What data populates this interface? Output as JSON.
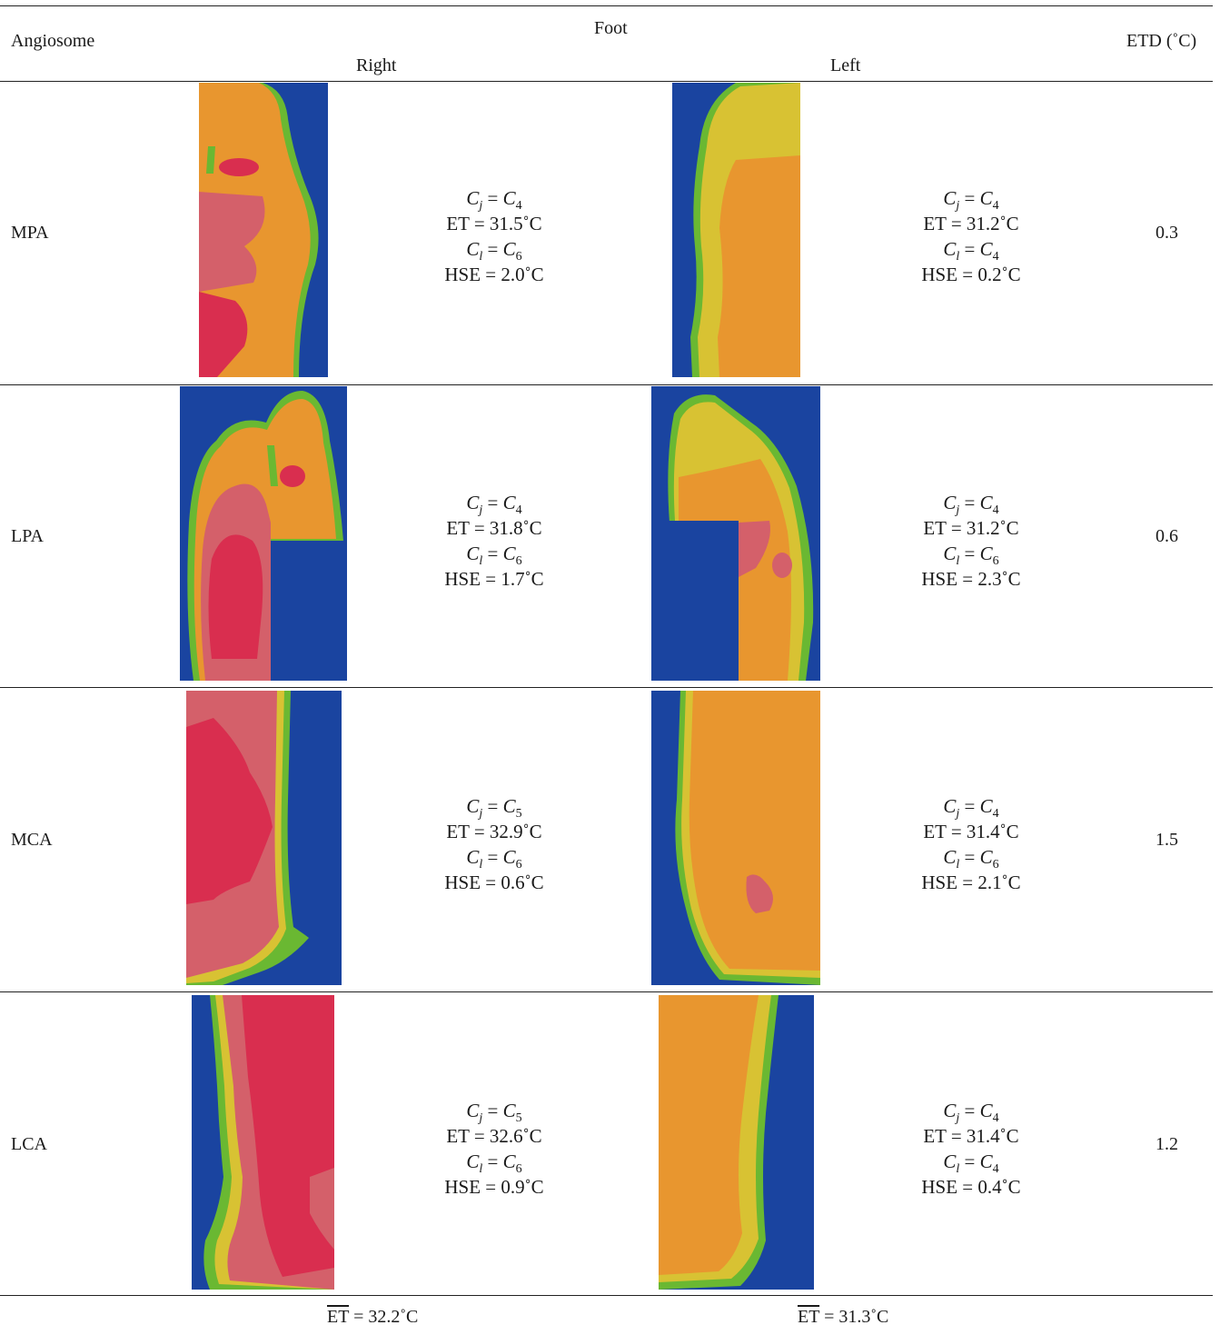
{
  "header": {
    "col_angiosome": "Angiosome",
    "col_foot": "Foot",
    "col_right": "Right",
    "col_left": "Left",
    "col_etd": "ETD (˚C)"
  },
  "colors": {
    "background": "#1a44a0",
    "cold_green": "#6ab832",
    "yellow": "#d8c233",
    "orange": "#e8962f",
    "pink": "#d4606a",
    "red": "#d92e4f"
  },
  "rows": [
    {
      "angiosome": "MPA",
      "right": {
        "cj_lhs": "C",
        "cj_sub": "j",
        "cj_rhs": "C",
        "cj_rsub": "4",
        "et": "ET = 31.5˚C",
        "cl_lhs": "C",
        "cl_sub": "l",
        "cl_rhs": "C",
        "cl_rsub": "6",
        "hse": "HSE = 2.0˚C"
      },
      "left": {
        "cj_lhs": "C",
        "cj_sub": "j",
        "cj_rhs": "C",
        "cj_rsub": "4",
        "et": "ET = 31.2˚C",
        "cl_lhs": "C",
        "cl_sub": "l",
        "cl_rhs": "C",
        "cl_rsub": "4",
        "hse": "HSE = 0.2˚C"
      },
      "etd": "0.3"
    },
    {
      "angiosome": "LPA",
      "right": {
        "cj_lhs": "C",
        "cj_sub": "j",
        "cj_rhs": "C",
        "cj_rsub": "4",
        "et": "ET = 31.8˚C",
        "cl_lhs": "C",
        "cl_sub": "l",
        "cl_rhs": "C",
        "cl_rsub": "6",
        "hse": "HSE = 1.7˚C"
      },
      "left": {
        "cj_lhs": "C",
        "cj_sub": "j",
        "cj_rhs": "C",
        "cj_rsub": "4",
        "et": "ET = 31.2˚C",
        "cl_lhs": "C",
        "cl_sub": "l",
        "cl_rhs": "C",
        "cl_rsub": "6",
        "hse": "HSE = 2.3˚C"
      },
      "etd": "0.6"
    },
    {
      "angiosome": "MCA",
      "right": {
        "cj_lhs": "C",
        "cj_sub": "j",
        "cj_rhs": "C",
        "cj_rsub": "5",
        "et": "ET = 32.9˚C",
        "cl_lhs": "C",
        "cl_sub": "l",
        "cl_rhs": "C",
        "cl_rsub": "6",
        "hse": "HSE = 0.6˚C"
      },
      "left": {
        "cj_lhs": "C",
        "cj_sub": "j",
        "cj_rhs": "C",
        "cj_rsub": "4",
        "et": "ET = 31.4˚C",
        "cl_lhs": "C",
        "cl_sub": "l",
        "cl_rhs": "C",
        "cl_rsub": "6",
        "hse": "HSE = 2.1˚C"
      },
      "etd": "1.5"
    },
    {
      "angiosome": "LCA",
      "right": {
        "cj_lhs": "C",
        "cj_sub": "j",
        "cj_rhs": "C",
        "cj_rsub": "5",
        "et": "ET = 32.6˚C",
        "cl_lhs": "C",
        "cl_sub": "l",
        "cl_rhs": "C",
        "cl_rsub": "6",
        "hse": "HSE = 0.9˚C"
      },
      "left": {
        "cj_lhs": "C",
        "cj_sub": "j",
        "cj_rhs": "C",
        "cj_rsub": "4",
        "et": "ET = 31.4˚C",
        "cl_lhs": "C",
        "cl_sub": "l",
        "cl_rhs": "C",
        "cl_rsub": "4",
        "hse": "HSE = 0.4˚C"
      },
      "etd": "1.2"
    }
  ],
  "footer": {
    "right_avg_label": "ET",
    "right_avg_value": " = 32.2˚C",
    "left_avg_label": "ET",
    "left_avg_value": " = 31.3˚C"
  }
}
